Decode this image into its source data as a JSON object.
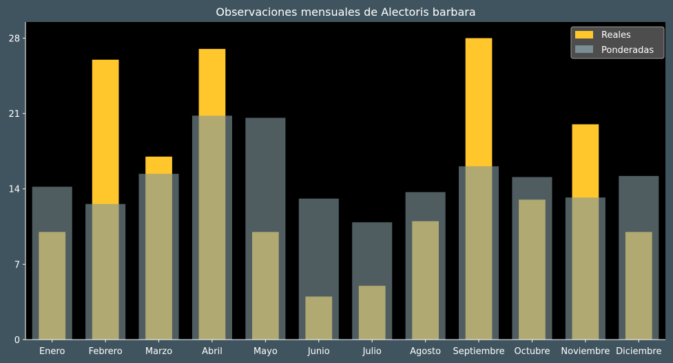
{
  "chart_data": {
    "type": "bar",
    "title": "Observaciones mensuales de Alectoris barbara",
    "xlabel": "",
    "ylabel": "",
    "categories": [
      "Enero",
      "Febrero",
      "Marzo",
      "Abril",
      "Mayo",
      "Junio",
      "Julio",
      "Agosto",
      "Septiembre",
      "Octubre",
      "Noviembre",
      "Diciembre"
    ],
    "series": [
      {
        "name": "Reales",
        "color": "#ffc72c",
        "values": [
          10,
          26,
          17,
          27,
          10,
          4,
          5,
          11,
          28,
          13,
          20,
          10
        ]
      },
      {
        "name": "Ponderadas",
        "color": "#7f969c",
        "values": [
          14.2,
          12.6,
          15.4,
          20.8,
          20.6,
          13.1,
          10.9,
          13.7,
          16.1,
          15.1,
          13.2,
          15.2
        ]
      }
    ],
    "ylim": [
      0,
      29.5
    ],
    "yticks": [
      0,
      7,
      14,
      21,
      28
    ],
    "grid": false,
    "legend_position": "top-right",
    "plot_background": "#000000",
    "figure_background": "#40545f"
  }
}
